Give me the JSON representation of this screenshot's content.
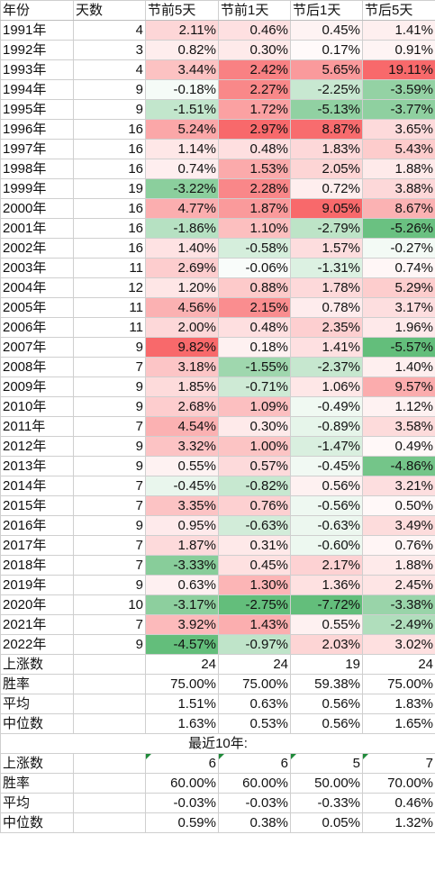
{
  "headers": [
    "年份",
    "天数",
    "节前5天",
    "节前1天",
    "节后1天",
    "节后5天"
  ],
  "rows": [
    [
      "1991年",
      "4",
      "2.11%",
      "0.46%",
      "0.45%",
      "1.41%"
    ],
    [
      "1992年",
      "3",
      "0.82%",
      "0.30%",
      "0.17%",
      "0.91%"
    ],
    [
      "1993年",
      "4",
      "3.44%",
      "2.42%",
      "5.65%",
      "19.11%"
    ],
    [
      "1994年",
      "9",
      "-0.18%",
      "2.27%",
      "-2.25%",
      "-3.59%"
    ],
    [
      "1995年",
      "9",
      "-1.51%",
      "1.72%",
      "-5.13%",
      "-3.77%"
    ],
    [
      "1996年",
      "16",
      "5.24%",
      "2.97%",
      "8.87%",
      "3.65%"
    ],
    [
      "1997年",
      "16",
      "1.14%",
      "0.48%",
      "1.83%",
      "5.43%"
    ],
    [
      "1998年",
      "16",
      "0.74%",
      "1.53%",
      "2.05%",
      "1.88%"
    ],
    [
      "1999年",
      "19",
      "-3.22%",
      "2.28%",
      "0.72%",
      "3.88%"
    ],
    [
      "2000年",
      "16",
      "4.77%",
      "1.87%",
      "9.05%",
      "8.67%"
    ],
    [
      "2001年",
      "16",
      "-1.86%",
      "1.10%",
      "-2.79%",
      "-5.26%"
    ],
    [
      "2002年",
      "16",
      "1.40%",
      "-0.58%",
      "1.57%",
      "-0.27%"
    ],
    [
      "2003年",
      "11",
      "2.69%",
      "-0.06%",
      "-1.31%",
      "0.74%"
    ],
    [
      "2004年",
      "12",
      "1.20%",
      "0.88%",
      "1.78%",
      "5.29%"
    ],
    [
      "2005年",
      "11",
      "4.56%",
      "2.15%",
      "0.78%",
      "3.17%"
    ],
    [
      "2006年",
      "11",
      "2.00%",
      "0.48%",
      "2.35%",
      "1.96%"
    ],
    [
      "2007年",
      "9",
      "9.82%",
      "0.18%",
      "1.41%",
      "-5.57%"
    ],
    [
      "2008年",
      "7",
      "3.18%",
      "-1.55%",
      "-2.37%",
      "1.40%"
    ],
    [
      "2009年",
      "9",
      "1.85%",
      "-0.71%",
      "1.06%",
      "9.57%"
    ],
    [
      "2010年",
      "9",
      "2.68%",
      "1.09%",
      "-0.49%",
      "1.12%"
    ],
    [
      "2011年",
      "7",
      "4.54%",
      "0.30%",
      "-0.89%",
      "3.58%"
    ],
    [
      "2012年",
      "9",
      "3.32%",
      "1.00%",
      "-1.47%",
      "0.49%"
    ],
    [
      "2013年",
      "9",
      "0.55%",
      "0.57%",
      "-0.45%",
      "-4.86%"
    ],
    [
      "2014年",
      "7",
      "-0.45%",
      "-0.82%",
      "0.56%",
      "3.21%"
    ],
    [
      "2015年",
      "7",
      "3.35%",
      "0.76%",
      "-0.56%",
      "0.50%"
    ],
    [
      "2016年",
      "9",
      "0.95%",
      "-0.63%",
      "-0.63%",
      "3.49%"
    ],
    [
      "2017年",
      "7",
      "1.87%",
      "0.31%",
      "-0.60%",
      "0.76%"
    ],
    [
      "2018年",
      "7",
      "-3.33%",
      "0.45%",
      "2.17%",
      "1.88%"
    ],
    [
      "2019年",
      "9",
      "0.63%",
      "1.30%",
      "1.36%",
      "2.45%"
    ],
    [
      "2020年",
      "10",
      "-3.17%",
      "-2.75%",
      "-7.72%",
      "-3.38%"
    ],
    [
      "2021年",
      "7",
      "3.92%",
      "1.43%",
      "0.55%",
      "-2.49%"
    ],
    [
      "2022年",
      "9",
      "-4.57%",
      "-0.97%",
      "2.03%",
      "3.02%"
    ]
  ],
  "summary": [
    [
      "上涨数",
      "",
      "24",
      "24",
      "19",
      "24"
    ],
    [
      "胜率",
      "",
      "75.00%",
      "75.00%",
      "59.38%",
      "75.00%"
    ],
    [
      "平均",
      "",
      "1.51%",
      "0.63%",
      "0.56%",
      "1.83%"
    ],
    [
      "中位数",
      "",
      "1.63%",
      "0.53%",
      "0.56%",
      "1.65%"
    ]
  ],
  "recent_title": "最近10年:",
  "recent": [
    [
      "上涨数",
      "",
      "6",
      "6",
      "5",
      "7"
    ],
    [
      "胜率",
      "",
      "60.00%",
      "60.00%",
      "50.00%",
      "70.00%"
    ],
    [
      "平均",
      "",
      "-0.03%",
      "-0.03%",
      "-0.33%",
      "0.46%"
    ],
    [
      "中位数",
      "",
      "0.59%",
      "0.38%",
      "0.05%",
      "1.32%"
    ]
  ],
  "colors": {
    "positive": "#f8696b",
    "negative": "#63be7b",
    "neutral": "#ffffff",
    "marker": "#1f8a3a"
  }
}
